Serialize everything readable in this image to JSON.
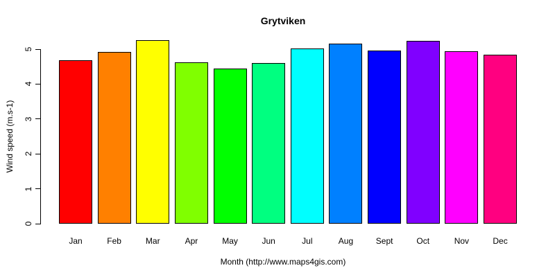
{
  "chart_data": {
    "type": "bar",
    "title": "Grytviken",
    "xlabel": "Month (http://www.maps4gis.com)",
    "ylabel": "Wind speed (m.s-1)",
    "categories": [
      "Jan",
      "Feb",
      "Mar",
      "Apr",
      "May",
      "Jun",
      "Jul",
      "Aug",
      "Sept",
      "Oct",
      "Nov",
      "Dec"
    ],
    "values": [
      4.69,
      4.92,
      5.26,
      4.62,
      4.44,
      4.6,
      5.02,
      5.16,
      4.97,
      5.24,
      4.94,
      4.84
    ],
    "bar_colors": [
      "#FF0000",
      "#FF8000",
      "#FFFF00",
      "#80FF00",
      "#00FF00",
      "#00FF80",
      "#00FFFF",
      "#0080FF",
      "#0000FF",
      "#8000FF",
      "#FF00FF",
      "#FF0080"
    ],
    "bar_border_color": "#000000",
    "yticks": [
      0,
      1,
      2,
      3,
      4,
      5
    ],
    "ylim": [
      0,
      5.3
    ],
    "grid": false,
    "legend": "none"
  }
}
